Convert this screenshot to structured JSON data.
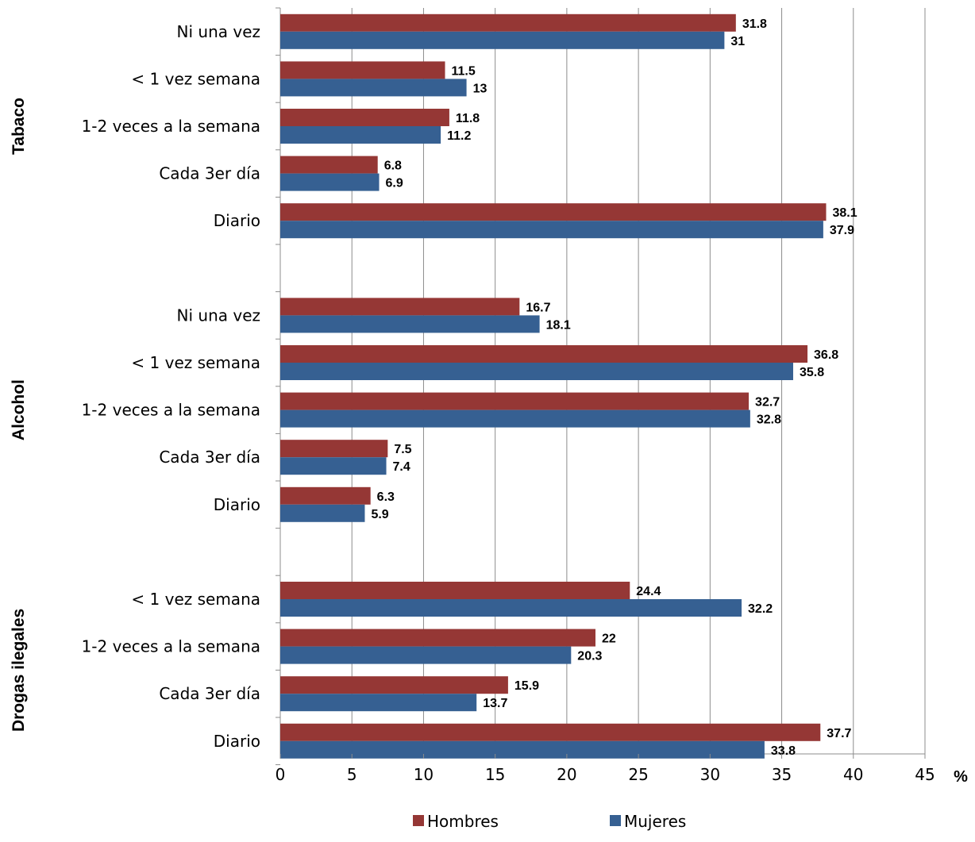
{
  "chart_data": {
    "type": "bar",
    "orientation": "horizontal",
    "x_unit_label": "%",
    "xlim": [
      0,
      45
    ],
    "x_ticks": [
      "0",
      "5",
      "10",
      "15",
      "20",
      "25",
      "30",
      "35",
      "40",
      "45"
    ],
    "grid": true,
    "legend_position": "bottom",
    "series": [
      {
        "name": "Hombres",
        "color": "#953735"
      },
      {
        "name": "Mujeres",
        "color": "#366092"
      }
    ],
    "groups": [
      {
        "label": "Tabaco",
        "categories": [
          {
            "label": "Ni una vez",
            "values": [
              31.8,
              31.0
            ]
          },
          {
            "label": "< 1 vez semana",
            "values": [
              11.5,
              13.0
            ]
          },
          {
            "label": "1-2 veces a la semana",
            "values": [
              11.8,
              11.2
            ]
          },
          {
            "label": "Cada 3er día",
            "values": [
              6.8,
              6.9
            ]
          },
          {
            "label": "Diario",
            "values": [
              38.1,
              37.9
            ]
          }
        ]
      },
      {
        "label": "Alcohol",
        "categories": [
          {
            "label": "Ni una vez",
            "values": [
              16.7,
              18.1
            ]
          },
          {
            "label": "< 1 vez semana",
            "values": [
              36.8,
              35.8
            ]
          },
          {
            "label": "1-2 veces a la semana",
            "values": [
              32.7,
              32.8
            ]
          },
          {
            "label": "Cada 3er día",
            "values": [
              7.5,
              7.4
            ]
          },
          {
            "label": "Diario",
            "values": [
              6.3,
              5.9
            ]
          }
        ]
      },
      {
        "label": "Drogas ilegales",
        "categories": [
          {
            "label": "< 1 vez semana",
            "values": [
              24.4,
              32.2
            ]
          },
          {
            "label": "1-2 veces a la semana",
            "values": [
              22.0,
              20.3
            ]
          },
          {
            "label": "Cada 3er día",
            "values": [
              15.9,
              13.7
            ]
          },
          {
            "label": "Diario",
            "values": [
              37.7,
              33.8
            ]
          }
        ]
      }
    ]
  }
}
